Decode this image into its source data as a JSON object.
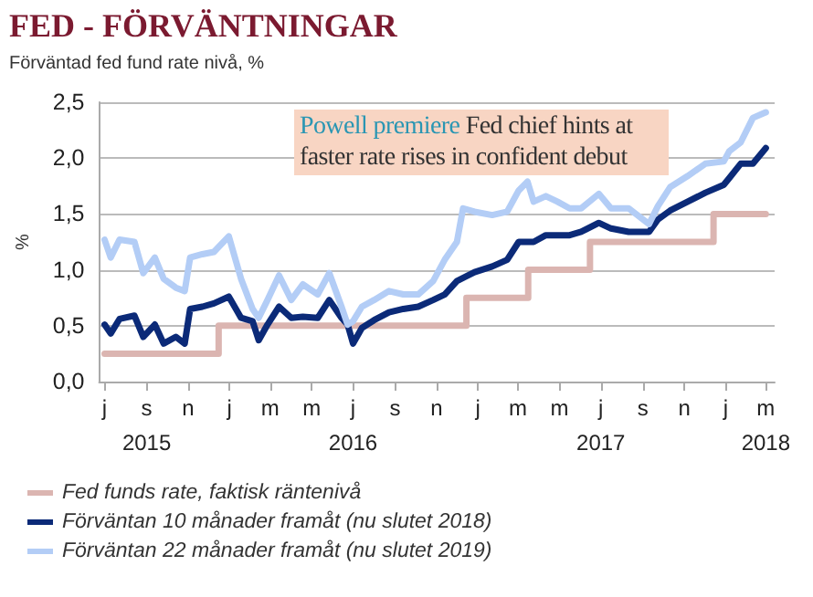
{
  "chart_data": {
    "type": "line",
    "title": "FED - FÖRVÄNTNINGAR",
    "subtitle": "Förväntad fed fund rate nivå, %",
    "ylabel": "%",
    "annotations": [
      "Powell premiere",
      "Fed chief hints at faster rate rises in confident debut"
    ],
    "xlim": [
      "2015-06-23",
      "2018-03-14"
    ],
    "xticks": [
      {
        "value": "2015-07-01",
        "label": "j"
      },
      {
        "value": "2015-09-01",
        "label": "s\n2015"
      },
      {
        "value": "2015-11-01",
        "label": "n"
      },
      {
        "value": "2016-01-01",
        "label": "j"
      },
      {
        "value": "2016-03-01",
        "label": "m"
      },
      {
        "value": "2016-05-01",
        "label": "m"
      },
      {
        "value": "2016-07-01",
        "label": "j\n2016"
      },
      {
        "value": "2016-09-01",
        "label": "s"
      },
      {
        "value": "2016-11-01",
        "label": "n"
      },
      {
        "value": "2017-01-01",
        "label": "j"
      },
      {
        "value": "2017-03-01",
        "label": "m"
      },
      {
        "value": "2017-05-01",
        "label": "m"
      },
      {
        "value": "2017-07-01",
        "label": "j\n2017"
      },
      {
        "value": "2017-09-01",
        "label": "s"
      },
      {
        "value": "2017-11-01",
        "label": "n"
      },
      {
        "value": "2018-01-01",
        "label": "j"
      },
      {
        "value": "2018-03-01",
        "label": "m\n2018"
      }
    ],
    "ylim": [
      0,
      2.5
    ],
    "yticks": [
      {
        "value": 0,
        "label": "0,0"
      },
      {
        "value": 0.5,
        "label": "0,5"
      },
      {
        "value": 1,
        "label": "1,0"
      },
      {
        "value": 1.5,
        "label": "1,5"
      },
      {
        "value": 2,
        "label": "2,0"
      },
      {
        "value": 2.5,
        "label": "2,5"
      }
    ],
    "grid": "y",
    "legend": "bottom",
    "marker": "none",
    "line_style": "solid",
    "series": [
      {
        "name": "Fed funds rate, faktisk räntenivå",
        "type": "step",
        "color": "#dbb5b1",
        "x": [
          "2015-07-01",
          "2015-12-16",
          "2016-12-15",
          "2017-03-16",
          "2017-06-15",
          "2017-12-14",
          "2018-03-01"
        ],
        "values": [
          0.25,
          0.5,
          0.75,
          1.0,
          1.25,
          1.5,
          1.5
        ]
      },
      {
        "name": "Förväntan 10 månader framåt (nu slutet 2018)",
        "color": "#0b2a78",
        "x": [
          "2015-07-01",
          "2015-07-10",
          "2015-07-23",
          "2015-08-14",
          "2015-08-27",
          "2015-09-13",
          "2015-09-26",
          "2015-10-14",
          "2015-10-27",
          "2015-11-04",
          "2015-11-22",
          "2015-12-09",
          "2015-12-31",
          "2016-01-18",
          "2016-02-04",
          "2016-02-13",
          "2016-02-26",
          "2016-03-14",
          "2016-04-01",
          "2016-04-18",
          "2016-05-10",
          "2016-05-27",
          "2016-06-14",
          "2016-06-23",
          "2016-07-01",
          "2016-07-14",
          "2016-08-01",
          "2016-08-23",
          "2016-09-13",
          "2016-10-05",
          "2016-10-27",
          "2016-11-13",
          "2016-12-01",
          "2016-12-27",
          "2017-01-22",
          "2017-02-13",
          "2017-03-02",
          "2017-03-24",
          "2017-04-11",
          "2017-04-28",
          "2017-05-16",
          "2017-06-02",
          "2017-06-28",
          "2017-07-16",
          "2017-08-11",
          "2017-09-10",
          "2017-09-23",
          "2017-10-11",
          "2017-11-06",
          "2017-12-02",
          "2017-12-29",
          "2018-01-06",
          "2018-01-23",
          "2018-02-10",
          "2018-03-01"
        ],
        "values": [
          0.51,
          0.43,
          0.56,
          0.59,
          0.4,
          0.51,
          0.34,
          0.4,
          0.34,
          0.65,
          0.67,
          0.7,
          0.76,
          0.57,
          0.54,
          0.37,
          0.51,
          0.67,
          0.57,
          0.58,
          0.57,
          0.73,
          0.57,
          0.51,
          0.34,
          0.48,
          0.55,
          0.62,
          0.65,
          0.67,
          0.73,
          0.78,
          0.9,
          0.98,
          1.03,
          1.09,
          1.25,
          1.25,
          1.31,
          1.31,
          1.31,
          1.34,
          1.42,
          1.37,
          1.34,
          1.34,
          1.45,
          1.53,
          1.61,
          1.69,
          1.76,
          1.82,
          1.95,
          1.95,
          2.09
        ]
      },
      {
        "name": "Förväntan 22 månader framåt (nu slutet 2019)",
        "color": "#b3cdf6",
        "x": [
          "2015-07-01",
          "2015-07-10",
          "2015-07-23",
          "2015-08-14",
          "2015-08-27",
          "2015-09-13",
          "2015-09-26",
          "2015-10-14",
          "2015-10-27",
          "2015-11-04",
          "2015-11-22",
          "2015-12-09",
          "2015-12-31",
          "2016-01-18",
          "2016-02-04",
          "2016-02-13",
          "2016-02-26",
          "2016-03-14",
          "2016-04-01",
          "2016-04-18",
          "2016-05-10",
          "2016-05-27",
          "2016-06-14",
          "2016-06-23",
          "2016-07-01",
          "2016-07-14",
          "2016-08-01",
          "2016-08-23",
          "2016-09-13",
          "2016-10-05",
          "2016-10-27",
          "2016-11-13",
          "2016-12-01",
          "2016-12-10",
          "2016-12-27",
          "2017-01-22",
          "2017-02-13",
          "2017-03-02",
          "2017-03-15",
          "2017-03-24",
          "2017-04-11",
          "2017-04-28",
          "2017-05-16",
          "2017-06-02",
          "2017-06-28",
          "2017-07-16",
          "2017-08-11",
          "2017-09-10",
          "2017-09-23",
          "2017-10-11",
          "2017-11-06",
          "2017-12-02",
          "2017-12-29",
          "2018-01-06",
          "2018-01-23",
          "2018-02-10",
          "2018-03-01"
        ],
        "values": [
          1.27,
          1.11,
          1.27,
          1.25,
          0.97,
          1.11,
          0.92,
          0.84,
          0.81,
          1.11,
          1.14,
          1.16,
          1.3,
          0.92,
          0.65,
          0.57,
          0.73,
          0.95,
          0.73,
          0.87,
          0.78,
          0.97,
          0.67,
          0.51,
          0.54,
          0.67,
          0.73,
          0.81,
          0.78,
          0.78,
          0.9,
          1.09,
          1.25,
          1.55,
          1.52,
          1.49,
          1.52,
          1.71,
          1.79,
          1.61,
          1.66,
          1.61,
          1.55,
          1.55,
          1.68,
          1.55,
          1.55,
          1.41,
          1.57,
          1.74,
          1.84,
          1.95,
          1.97,
          2.06,
          2.14,
          2.36,
          2.41
        ]
      }
    ]
  }
}
